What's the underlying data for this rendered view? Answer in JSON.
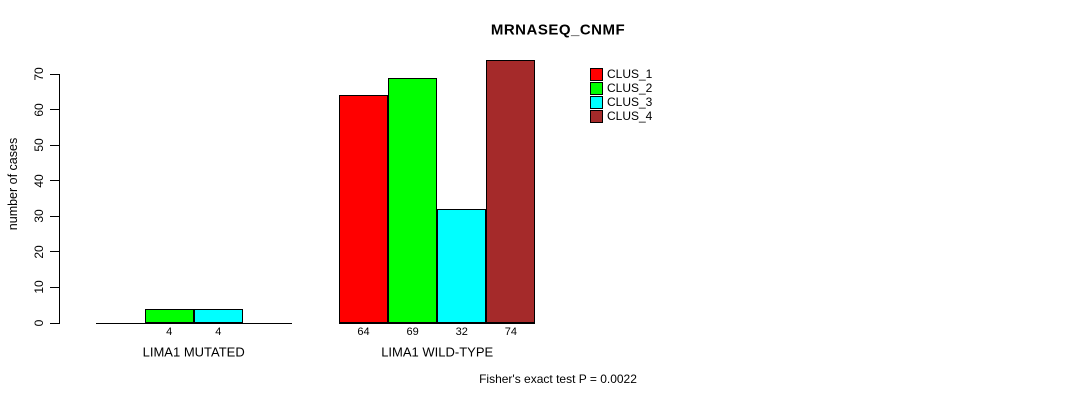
{
  "chart_data": {
    "type": "bar",
    "title": "MRNASEQ_CNMF",
    "ylabel": "number of cases",
    "xlabel": "",
    "ylim": [
      0,
      70
    ],
    "yticks": [
      0,
      10,
      20,
      30,
      40,
      50,
      60,
      70
    ],
    "grid": false,
    "legend_position": "inside-top-right",
    "categories": [
      "LIMA1 MUTATED",
      "LIMA1 WILD-TYPE"
    ],
    "series": [
      {
        "name": "CLUS_1",
        "color": "#FF0000",
        "values": [
          0,
          64
        ]
      },
      {
        "name": "CLUS_2",
        "color": "#00FF00",
        "values": [
          4,
          69
        ]
      },
      {
        "name": "CLUS_3",
        "color": "#00FFFF",
        "values": [
          4,
          32
        ]
      },
      {
        "name": "CLUS_4",
        "color": "#A52A2A",
        "values": [
          0,
          74
        ]
      }
    ],
    "bar_value_labels_shown_only_for_nonzero": true,
    "annotation": "Fisher's exact test P = 0.0022"
  }
}
